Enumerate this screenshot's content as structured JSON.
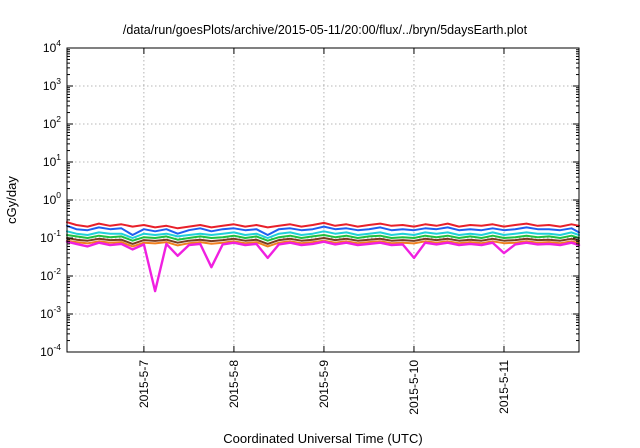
{
  "chart_data": {
    "type": "line",
    "title": "/data/run/goesPlots/archive/2015-05-11/20:00/flux/../bryn/5daysEarth.plot",
    "xlabel": "Coordinated Universal Time (UTC)",
    "ylabel": "cGy/day",
    "yscale": "log",
    "ylim": [
      0.0001,
      10000
    ],
    "xlim": [
      "2015-05-06T03:30",
      "2015-05-11T20:00"
    ],
    "grid": true,
    "x_ticks": [
      {
        "date": "2015-05-07",
        "label": "2015-5-7"
      },
      {
        "date": "2015-05-08",
        "label": "2015-5-8"
      },
      {
        "date": "2015-05-09",
        "label": "2015-5-9"
      },
      {
        "date": "2015-05-10",
        "label": "2015-5-10"
      },
      {
        "date": "2015-05-11",
        "label": "2015-5-11"
      }
    ],
    "y_ticks": [
      {
        "value": 0.0001,
        "base": "10",
        "exp": "-4"
      },
      {
        "value": 0.001,
        "base": "10",
        "exp": "-3"
      },
      {
        "value": 0.01,
        "base": "10",
        "exp": "-2"
      },
      {
        "value": 0.1,
        "base": "10",
        "exp": "-1"
      },
      {
        "value": 1,
        "base": "10",
        "exp": "0"
      },
      {
        "value": 10,
        "base": "10",
        "exp": "1"
      },
      {
        "value": 100,
        "base": "10",
        "exp": "2"
      },
      {
        "value": 1000,
        "base": "10",
        "exp": "3"
      },
      {
        "value": 10000,
        "base": "10",
        "exp": "4"
      }
    ],
    "x": [
      "2015-05-06T03:30",
      "2015-05-06T06:00",
      "2015-05-06T09:00",
      "2015-05-06T12:00",
      "2015-05-06T15:00",
      "2015-05-06T18:00",
      "2015-05-06T21:00",
      "2015-05-07T00:00",
      "2015-05-07T03:00",
      "2015-05-07T06:00",
      "2015-05-07T09:00",
      "2015-05-07T12:00",
      "2015-05-07T15:00",
      "2015-05-07T18:00",
      "2015-05-07T21:00",
      "2015-05-08T00:00",
      "2015-05-08T03:00",
      "2015-05-08T06:00",
      "2015-05-08T09:00",
      "2015-05-08T12:00",
      "2015-05-08T15:00",
      "2015-05-08T18:00",
      "2015-05-08T21:00",
      "2015-05-09T00:00",
      "2015-05-09T03:00",
      "2015-05-09T06:00",
      "2015-05-09T09:00",
      "2015-05-09T12:00",
      "2015-05-09T15:00",
      "2015-05-09T18:00",
      "2015-05-09T21:00",
      "2015-05-10T00:00",
      "2015-05-10T03:00",
      "2015-05-10T06:00",
      "2015-05-10T09:00",
      "2015-05-10T12:00",
      "2015-05-10T15:00",
      "2015-05-10T18:00",
      "2015-05-10T21:00",
      "2015-05-11T00:00",
      "2015-05-11T03:00",
      "2015-05-11T06:00",
      "2015-05-11T09:00",
      "2015-05-11T12:00",
      "2015-05-11T15:00",
      "2015-05-11T18:00",
      "2015-05-11T20:00"
    ],
    "series": [
      {
        "color": "#e8202a",
        "values": [
          0.26,
          0.22,
          0.2,
          0.24,
          0.21,
          0.23,
          0.2,
          0.22,
          0.19,
          0.21,
          0.18,
          0.2,
          0.22,
          0.19,
          0.21,
          0.23,
          0.2,
          0.22,
          0.19,
          0.21,
          0.23,
          0.2,
          0.22,
          0.25,
          0.21,
          0.23,
          0.2,
          0.22,
          0.24,
          0.21,
          0.22,
          0.2,
          0.23,
          0.21,
          0.24,
          0.2,
          0.22,
          0.21,
          0.23,
          0.2,
          0.22,
          0.24,
          0.21,
          0.22,
          0.2,
          0.23,
          0.21
        ]
      },
      {
        "color": "#2060f0",
        "values": [
          0.21,
          0.17,
          0.16,
          0.19,
          0.17,
          0.18,
          0.12,
          0.17,
          0.15,
          0.17,
          0.13,
          0.16,
          0.18,
          0.15,
          0.17,
          0.18,
          0.16,
          0.17,
          0.12,
          0.17,
          0.18,
          0.16,
          0.17,
          0.2,
          0.17,
          0.18,
          0.16,
          0.17,
          0.19,
          0.16,
          0.17,
          0.16,
          0.18,
          0.17,
          0.19,
          0.16,
          0.17,
          0.16,
          0.18,
          0.16,
          0.17,
          0.19,
          0.17,
          0.17,
          0.16,
          0.18,
          0.14
        ]
      },
      {
        "color": "#20d0d8",
        "values": [
          0.15,
          0.13,
          0.12,
          0.14,
          0.13,
          0.13,
          0.1,
          0.13,
          0.12,
          0.13,
          0.11,
          0.12,
          0.13,
          0.12,
          0.13,
          0.14,
          0.12,
          0.13,
          0.1,
          0.13,
          0.14,
          0.12,
          0.13,
          0.15,
          0.13,
          0.14,
          0.12,
          0.13,
          0.14,
          0.12,
          0.13,
          0.12,
          0.14,
          0.13,
          0.14,
          0.12,
          0.13,
          0.12,
          0.14,
          0.12,
          0.13,
          0.14,
          0.13,
          0.13,
          0.12,
          0.14,
          0.12
        ]
      },
      {
        "color": "#20c040",
        "values": [
          0.12,
          0.11,
          0.1,
          0.115,
          0.105,
          0.11,
          0.085,
          0.105,
          0.1,
          0.11,
          0.09,
          0.1,
          0.11,
          0.1,
          0.105,
          0.115,
          0.1,
          0.11,
          0.085,
          0.105,
          0.115,
          0.1,
          0.11,
          0.12,
          0.105,
          0.115,
          0.1,
          0.11,
          0.115,
          0.1,
          0.105,
          0.1,
          0.115,
          0.105,
          0.115,
          0.1,
          0.11,
          0.1,
          0.115,
          0.1,
          0.105,
          0.115,
          0.105,
          0.11,
          0.1,
          0.115,
          0.1
        ]
      },
      {
        "color": "#7a3c20",
        "values": [
          0.1,
          0.09,
          0.085,
          0.095,
          0.088,
          0.09,
          0.07,
          0.088,
          0.084,
          0.09,
          0.075,
          0.085,
          0.09,
          0.083,
          0.088,
          0.095,
          0.085,
          0.09,
          0.07,
          0.088,
          0.095,
          0.085,
          0.09,
          0.1,
          0.088,
          0.095,
          0.085,
          0.09,
          0.095,
          0.085,
          0.088,
          0.084,
          0.095,
          0.088,
          0.095,
          0.085,
          0.09,
          0.085,
          0.095,
          0.085,
          0.088,
          0.095,
          0.088,
          0.09,
          0.085,
          0.095,
          0.085
        ]
      },
      {
        "color": "#f08020",
        "values": [
          0.085,
          0.078,
          0.072,
          0.082,
          0.075,
          0.078,
          0.06,
          0.075,
          0.072,
          0.078,
          0.064,
          0.073,
          0.078,
          0.071,
          0.075,
          0.082,
          0.073,
          0.078,
          0.06,
          0.075,
          0.082,
          0.073,
          0.078,
          0.085,
          0.075,
          0.082,
          0.073,
          0.078,
          0.082,
          0.073,
          0.075,
          0.072,
          0.082,
          0.075,
          0.082,
          0.073,
          0.078,
          0.073,
          0.082,
          0.073,
          0.075,
          0.082,
          0.075,
          0.078,
          0.073,
          0.082,
          0.073
        ]
      },
      {
        "color": "#f020e0",
        "values": [
          0.08,
          0.07,
          0.06,
          0.075,
          0.065,
          0.07,
          0.05,
          0.068,
          0.004,
          0.07,
          0.034,
          0.065,
          0.07,
          0.017,
          0.068,
          0.075,
          0.065,
          0.07,
          0.03,
          0.068,
          0.075,
          0.065,
          0.07,
          0.08,
          0.068,
          0.075,
          0.065,
          0.07,
          0.075,
          0.065,
          0.068,
          0.03,
          0.075,
          0.068,
          0.075,
          0.065,
          0.07,
          0.065,
          0.075,
          0.04,
          0.068,
          0.075,
          0.068,
          0.07,
          0.065,
          0.075,
          0.065
        ]
      }
    ]
  }
}
